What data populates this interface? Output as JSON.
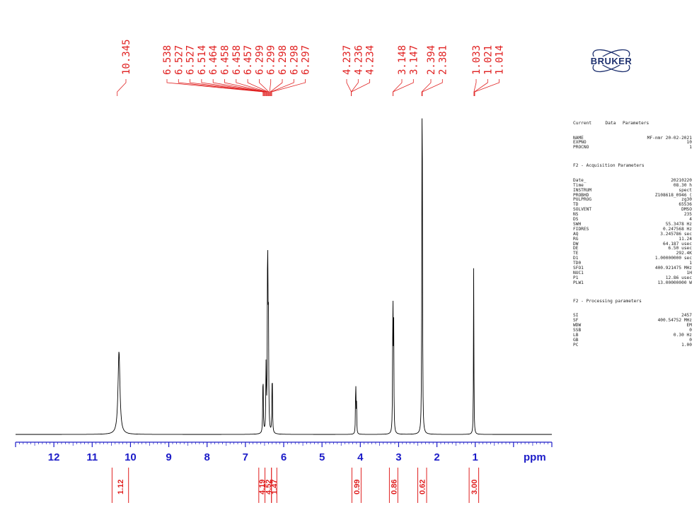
{
  "peak_labels": [
    "10.345",
    "6.538",
    "6.527",
    "6.527",
    "6.514",
    "6.464",
    "6.458",
    "6.458",
    "6.457",
    "6.299",
    "6.299",
    "6.298",
    "6.298",
    "6.297",
    "4.237",
    "4.236",
    "4.234",
    "3.148",
    "3.147",
    "2.394",
    "2.381",
    "1.033",
    "1.021",
    "1.014"
  ],
  "brand": "BRUKER",
  "params": {
    "header": {
      "col1": "Current",
      "col2": "Data",
      "col3": "Parameters"
    },
    "rows_current": [
      {
        "k": "NAME",
        "v": "MF-nmr 20-02-2021"
      },
      {
        "k": "EXPNO",
        "v": "10"
      },
      {
        "k": "PROCNO",
        "v": "1"
      }
    ],
    "acq_title": "F2 - Acquisition Parameters",
    "rows_acq": [
      {
        "k": "Date_",
        "v": "20210220"
      },
      {
        "k": "Time",
        "v": "08.30 h"
      },
      {
        "k": "INSTRUM",
        "v": "spect"
      },
      {
        "k": "PROBHD",
        "v": "Z108618_0946 ("
      },
      {
        "k": "PULPROG",
        "v": "zg30"
      },
      {
        "k": "TD",
        "v": "65536"
      },
      {
        "k": "SOLVENT",
        "v": "DMSO"
      },
      {
        "k": "NS",
        "v": "235"
      },
      {
        "k": "DS",
        "v": "4"
      },
      {
        "k": "SWH",
        "v": "55.3478 Hz"
      },
      {
        "k": "FIDRES",
        "v": "0.247568 Hz"
      },
      {
        "k": "AQ",
        "v": "3.245786 sec"
      },
      {
        "k": "RG",
        "v": "11.24"
      },
      {
        "k": "DW",
        "v": "64.187 usec"
      },
      {
        "k": "DE",
        "v": "6.50 usec"
      },
      {
        "k": "TE",
        "v": "292.4K"
      },
      {
        "k": "D1",
        "v": "1.00000000 sec"
      },
      {
        "k": "TD0",
        "v": "1"
      },
      {
        "k": "SFO1",
        "v": "400.921475 MHz"
      },
      {
        "k": "NUC1",
        "v": "1H"
      },
      {
        "k": "P1",
        "v": "12.86 usec"
      },
      {
        "k": "PLW1",
        "v": "13.00000000 W"
      }
    ],
    "proc_title": "F2 - Processing parameters",
    "rows_proc": [
      {
        "k": "SI",
        "v": "2457"
      },
      {
        "k": "SF",
        "v": "400.54752 MHz"
      },
      {
        "k": "WDW",
        "v": "EM"
      },
      {
        "k": "SSB",
        "v": "0"
      },
      {
        "k": "LB",
        "v": "0.30 Hz"
      },
      {
        "k": "GB",
        "v": "0"
      },
      {
        "k": "PC",
        "v": "1.00"
      }
    ]
  },
  "chart_data": {
    "type": "line",
    "xlabel": "ppm",
    "xlim": [
      13.0,
      -1.0
    ],
    "x_reversed": true,
    "x_ticks": [
      12,
      11,
      10,
      9,
      8,
      7,
      6,
      5,
      4,
      3,
      2,
      1
    ],
    "ylim": [
      0,
      1.0
    ],
    "peaks": [
      {
        "ppm": 10.3,
        "height": 0.32,
        "width": 0.03
      },
      {
        "ppm": 6.54,
        "height": 0.24,
        "width": 0.008
      },
      {
        "ppm": 6.46,
        "height": 0.26,
        "width": 0.008
      },
      {
        "ppm": 6.42,
        "height": 0.78,
        "width": 0.008
      },
      {
        "ppm": 6.4,
        "height": 0.47,
        "width": 0.008
      },
      {
        "ppm": 6.3,
        "height": 0.25,
        "width": 0.008
      },
      {
        "ppm": 4.12,
        "height": 0.24,
        "width": 0.006
      },
      {
        "ppm": 4.1,
        "height": 0.13,
        "width": 0.006
      },
      {
        "ppm": 3.15,
        "height": 0.56,
        "width": 0.007
      },
      {
        "ppm": 3.13,
        "height": 0.43,
        "width": 0.007
      },
      {
        "ppm": 2.39,
        "height": 0.95,
        "width": 0.007
      },
      {
        "ppm": 2.38,
        "height": 0.74,
        "width": 0.007
      },
      {
        "ppm": 1.04,
        "height": 0.65,
        "width": 0.006
      }
    ],
    "integrals": [
      {
        "label": "1.12",
        "from": 10.48,
        "to": 10.05
      },
      {
        "label": "4.19",
        "from": 6.65,
        "to": 6.49
      },
      {
        "label": "4.52",
        "from": 6.49,
        "to": 6.32
      },
      {
        "label": "1.47",
        "from": 6.32,
        "to": 6.18
      },
      {
        "label": "0.99",
        "from": 4.22,
        "to": 3.98
      },
      {
        "label": "0.86",
        "from": 3.24,
        "to": 3.02
      },
      {
        "label": "0.62",
        "from": 2.5,
        "to": 2.27
      },
      {
        "label": "3.00",
        "from": 1.16,
        "to": 0.91
      }
    ]
  },
  "colors": {
    "spectrum": "#000000",
    "labels": "#e02020",
    "axis": "#1c1cc8",
    "logo": "#1c2f6e"
  }
}
